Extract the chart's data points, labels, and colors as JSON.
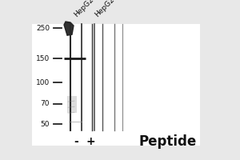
{
  "fig_width": 3.0,
  "fig_height": 2.0,
  "dpi": 100,
  "bg_color": "#e8e8e8",
  "panel_color": "#ffffff",
  "mw_labels": [
    "250",
    "150",
    "100",
    "70",
    "50"
  ],
  "mw_values": [
    250,
    150,
    100,
    70,
    50
  ],
  "col_labels": [
    "HepG2",
    "HepG2"
  ],
  "minus_label": "-",
  "plus_label": "+",
  "peptide_label": "Peptide"
}
